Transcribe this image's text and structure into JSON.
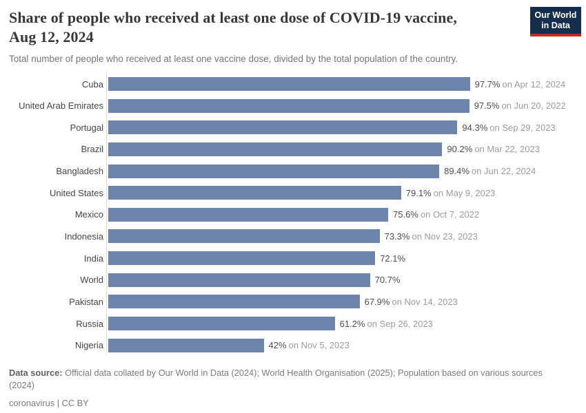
{
  "header": {
    "title_line1": "Share of people who received at least one dose of COVID-19 vaccine,",
    "title_line2": "Aug 12, 2024",
    "subtitle": "Total number of people who received at least one vaccine dose, divided by the total population of the country.",
    "logo": {
      "line1": "Our World",
      "line2": "in Data"
    }
  },
  "chart_data": {
    "type": "bar",
    "orientation": "horizontal",
    "title": "Share of people who received at least one dose of COVID-19 vaccine, Aug 12, 2024",
    "subtitle": "Total number of people who received at least one vaccine dose, divided by the total population of the country.",
    "unit": "%",
    "xlim": [
      0,
      100
    ],
    "grid": false,
    "legend": "none",
    "bar_color": "#6c83ac",
    "series": [
      {
        "entity": "Cuba",
        "value": 97.7,
        "value_label": "97.7%",
        "date_label": "on Apr 12, 2024"
      },
      {
        "entity": "United Arab Emirates",
        "value": 97.5,
        "value_label": "97.5%",
        "date_label": "on Jun 20, 2022"
      },
      {
        "entity": "Portugal",
        "value": 94.3,
        "value_label": "94.3%",
        "date_label": "on Sep 29, 2023"
      },
      {
        "entity": "Brazil",
        "value": 90.2,
        "value_label": "90.2%",
        "date_label": "on Mar 22, 2023"
      },
      {
        "entity": "Bangladesh",
        "value": 89.4,
        "value_label": "89.4%",
        "date_label": "on Jun 22, 2024"
      },
      {
        "entity": "United States",
        "value": 79.1,
        "value_label": "79.1%",
        "date_label": "on May 9, 2023"
      },
      {
        "entity": "Mexico",
        "value": 75.6,
        "value_label": "75.6%",
        "date_label": "on Oct 7, 2022"
      },
      {
        "entity": "Indonesia",
        "value": 73.3,
        "value_label": "73.3%",
        "date_label": "on Nov 23, 2023"
      },
      {
        "entity": "India",
        "value": 72.1,
        "value_label": "72.1%",
        "date_label": ""
      },
      {
        "entity": "World",
        "value": 70.7,
        "value_label": "70.7%",
        "date_label": ""
      },
      {
        "entity": "Pakistan",
        "value": 67.9,
        "value_label": "67.9%",
        "date_label": "on Nov 14, 2023"
      },
      {
        "entity": "Russia",
        "value": 61.2,
        "value_label": "61.2%",
        "date_label": "on Sep 26, 2023"
      },
      {
        "entity": "Nigeria",
        "value": 42,
        "value_label": "42%",
        "date_label": "on Nov 5, 2023"
      }
    ]
  },
  "footer": {
    "source_label": "Data source:",
    "source_text": " Official data collated by Our World in Data (2024); World Health Organisation (2025); Population based on various sources (2024)",
    "license": "coronavirus | CC BY"
  },
  "colors": {
    "bar": "#6c83ac",
    "axis_line": "#dcdcdc",
    "logo_bg": "#152e4d",
    "logo_stripe": "#c9281e",
    "title_text": "#373737",
    "subtitle_text": "#757575",
    "value_text": "#4d4d4d",
    "date_text": "#9b9b9b"
  }
}
